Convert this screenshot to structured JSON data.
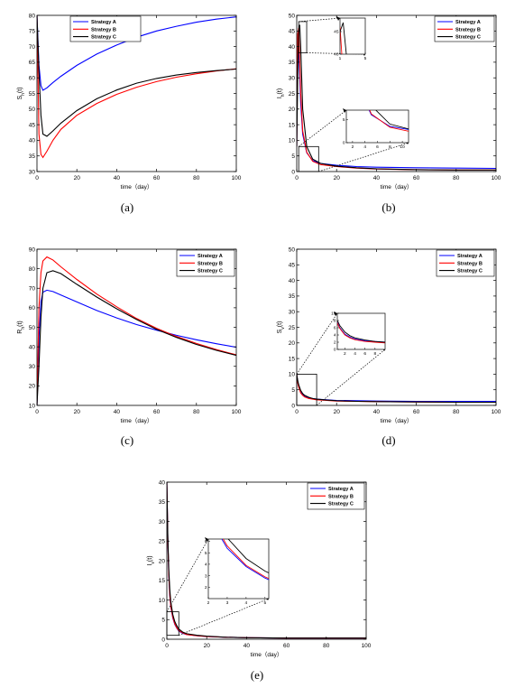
{
  "chart_data": [
    {
      "id": "a",
      "type": "line",
      "caption": "(a)",
      "xlabel": "time（day）",
      "ylabel": "S",
      "ylabel_sub": "h",
      "ylabel_tail": "(t)",
      "xlim": [
        0,
        100
      ],
      "ylim": [
        30,
        80
      ],
      "xticks": [
        0,
        20,
        40,
        60,
        80,
        100
      ],
      "yticks": [
        30,
        35,
        40,
        45,
        50,
        55,
        60,
        65,
        70,
        75,
        80
      ],
      "legend": "top-center",
      "series": [
        {
          "name": "Strategy A",
          "color": "#0000ff",
          "x": [
            0,
            1,
            2,
            3,
            5,
            8,
            12,
            20,
            30,
            40,
            50,
            60,
            70,
            80,
            90,
            100
          ],
          "y": [
            80,
            64,
            57.5,
            56,
            56.8,
            58.5,
            60.5,
            64,
            67.6,
            70.5,
            73,
            75,
            76.5,
            77.8,
            78.8,
            79.5
          ]
        },
        {
          "name": "Strategy B",
          "color": "#ff0000",
          "x": [
            0,
            1,
            2,
            3,
            5,
            8,
            12,
            20,
            30,
            40,
            50,
            60,
            70,
            80,
            90,
            100
          ],
          "y": [
            80,
            42,
            35.5,
            34.5,
            36.5,
            40,
            43.5,
            48,
            51.8,
            54.7,
            57,
            58.8,
            60.2,
            61.3,
            62.2,
            62.9
          ]
        },
        {
          "name": "Strategy C",
          "color": "#000000",
          "x": [
            0,
            1,
            2,
            3,
            5,
            8,
            12,
            20,
            30,
            40,
            50,
            60,
            70,
            80,
            90,
            100
          ],
          "y": [
            80,
            62,
            48,
            42,
            41.3,
            43,
            45.5,
            49.5,
            53.3,
            56.1,
            58.3,
            59.8,
            60.9,
            61.7,
            62.3,
            62.8
          ]
        }
      ]
    },
    {
      "id": "b",
      "type": "line",
      "caption": "(b)",
      "xlabel": "time（day）",
      "ylabel": "I",
      "ylabel_sub": "h",
      "ylabel_tail": "(t)",
      "xlim": [
        0,
        100
      ],
      "ylim": [
        0,
        50
      ],
      "xticks": [
        0,
        20,
        40,
        60,
        80,
        100
      ],
      "yticks": [
        0,
        5,
        10,
        15,
        20,
        25,
        30,
        35,
        40,
        45,
        50
      ],
      "legend": "top-right",
      "series": [
        {
          "name": "Strategy A",
          "color": "#0000ff",
          "x": [
            0,
            0.5,
            1,
            2,
            3,
            5,
            8,
            12,
            20,
            30,
            40,
            60,
            80,
            100
          ],
          "y": [
            8,
            42,
            40,
            22,
            12,
            6,
            3.5,
            2.6,
            2,
            1.6,
            1.4,
            1.2,
            1.1,
            1
          ]
        },
        {
          "name": "Strategy B",
          "color": "#ff0000",
          "x": [
            0,
            0.5,
            1,
            2,
            3,
            5,
            8,
            12,
            20,
            30,
            40,
            60,
            80,
            100
          ],
          "y": [
            8,
            44,
            46,
            25,
            13,
            6.2,
            3.3,
            2.2,
            1.6,
            1.1,
            0.8,
            0.6,
            0.5,
            0.5
          ]
        },
        {
          "name": "Strategy C",
          "color": "#000000",
          "x": [
            0,
            0.5,
            1,
            1.5,
            2,
            3,
            5,
            8,
            12,
            20,
            30,
            40,
            60,
            80,
            100
          ],
          "y": [
            8,
            30,
            45,
            47,
            40,
            20,
            8,
            4,
            2.6,
            1.7,
            1.2,
            0.9,
            0.6,
            0.5,
            0.5
          ]
        }
      ],
      "insets": [
        {
          "xlim": [
            1,
            5
          ],
          "ylim": [
            40,
            48
          ],
          "xticks": [
            1,
            5
          ],
          "yticks": [
            40,
            45
          ],
          "zoom_x": [
            1,
            5
          ],
          "zoom_y": [
            38,
            48
          ]
        },
        {
          "xlim": [
            1,
            11
          ],
          "ylim": [
            0,
            7
          ],
          "xticks": [
            2,
            4,
            6,
            8,
            10
          ],
          "yticks": [
            0,
            5
          ],
          "zoom_x": [
            1,
            11
          ],
          "zoom_y": [
            0,
            8
          ]
        }
      ]
    },
    {
      "id": "c",
      "type": "line",
      "caption": "(c)",
      "xlabel": "time（day）",
      "ylabel": "R",
      "ylabel_sub": "h",
      "ylabel_tail": "(t)",
      "xlim": [
        0,
        100
      ],
      "ylim": [
        10,
        90
      ],
      "xticks": [
        0,
        20,
        40,
        60,
        80,
        100
      ],
      "yticks": [
        10,
        20,
        30,
        40,
        50,
        60,
        70,
        80,
        90
      ],
      "legend": "top-right",
      "series": [
        {
          "name": "Strategy A",
          "color": "#0000ff",
          "x": [
            0,
            1,
            2,
            3,
            5,
            8,
            12,
            20,
            30,
            40,
            50,
            60,
            70,
            80,
            90,
            100
          ],
          "y": [
            10,
            45,
            63,
            68,
            69,
            68.3,
            66.5,
            63,
            58.6,
            54.8,
            51.4,
            48.5,
            45.9,
            43.6,
            41.6,
            39.8
          ]
        },
        {
          "name": "Strategy B",
          "color": "#ff0000",
          "x": [
            0,
            1,
            2,
            3,
            5,
            8,
            12,
            20,
            30,
            40,
            50,
            60,
            70,
            80,
            90,
            100
          ],
          "y": [
            10,
            60,
            78,
            84,
            86,
            84.5,
            81,
            74.5,
            67,
            60.5,
            54.5,
            49.5,
            45.3,
            41.7,
            38.6,
            35.9
          ]
        },
        {
          "name": "Strategy C",
          "color": "#000000",
          "x": [
            0,
            1,
            2,
            3,
            5,
            8,
            12,
            20,
            30,
            40,
            50,
            60,
            70,
            80,
            90,
            100
          ],
          "y": [
            10,
            30,
            55,
            70,
            78,
            79,
            77.5,
            72,
            65.5,
            59.5,
            54,
            49,
            44.8,
            41.2,
            38.2,
            35.6
          ]
        }
      ]
    },
    {
      "id": "d",
      "type": "line",
      "caption": "(d)",
      "xlabel": "time（day）",
      "ylabel": "S",
      "ylabel_sub": "v",
      "ylabel_tail": "(t)",
      "xlim": [
        0,
        100
      ],
      "ylim": [
        0,
        50
      ],
      "xticks": [
        0,
        20,
        40,
        60,
        80,
        100
      ],
      "yticks": [
        0,
        5,
        10,
        15,
        20,
        25,
        30,
        35,
        40,
        45,
        50
      ],
      "legend": "top-right",
      "series": [
        {
          "name": "Strategy A",
          "color": "#0000ff",
          "x": [
            0,
            0.5,
            1,
            2,
            3,
            4,
            6,
            8,
            10,
            15,
            20,
            30,
            40,
            60,
            80,
            100
          ],
          "y": [
            10,
            7.5,
            6,
            4.2,
            3.4,
            2.9,
            2.4,
            2.2,
            2,
            1.8,
            1.6,
            1.5,
            1.4,
            1.3,
            1.3,
            1.3
          ]
        },
        {
          "name": "Strategy B",
          "color": "#ff0000",
          "x": [
            0,
            0.5,
            1,
            2,
            3,
            4,
            6,
            8,
            10,
            15,
            20,
            30,
            40,
            60,
            80,
            100
          ],
          "y": [
            10,
            7.3,
            5.8,
            4,
            3.2,
            2.7,
            2.2,
            2,
            1.8,
            1.6,
            1.4,
            1.3,
            1.2,
            1.1,
            1,
            1
          ]
        },
        {
          "name": "Strategy C",
          "color": "#000000",
          "x": [
            0,
            0.5,
            1,
            2,
            3,
            4,
            6,
            8,
            10,
            15,
            20,
            30,
            40,
            60,
            80,
            100
          ],
          "y": [
            10,
            8,
            6.6,
            4.8,
            3.8,
            3.2,
            2.6,
            2.2,
            2,
            1.7,
            1.5,
            1.3,
            1.2,
            1.1,
            1,
            1
          ]
        }
      ],
      "insets": [
        {
          "xlim": [
            0.5,
            10
          ],
          "ylim": [
            0,
            10
          ],
          "xticks": [
            2,
            4,
            6,
            8
          ],
          "yticks": [
            0,
            2,
            4,
            6,
            8,
            10
          ],
          "zoom_x": [
            0,
            10
          ],
          "zoom_y": [
            0,
            10
          ]
        }
      ]
    },
    {
      "id": "e",
      "type": "line",
      "caption": "(e)",
      "xlabel": "time（day）",
      "ylabel": "I",
      "ylabel_sub": "v",
      "ylabel_tail": "(t)",
      "xlim": [
        0,
        100
      ],
      "ylim": [
        0,
        40
      ],
      "xticks": [
        0,
        20,
        40,
        60,
        80,
        100
      ],
      "yticks": [
        0,
        5,
        10,
        15,
        20,
        25,
        30,
        35,
        40
      ],
      "legend": "top-right",
      "series": [
        {
          "name": "Strategy A",
          "color": "#0000ff",
          "x": [
            0,
            0.5,
            1,
            1.5,
            2,
            3,
            4,
            5,
            6,
            8,
            10,
            15,
            20,
            30,
            40,
            60,
            80,
            100
          ],
          "y": [
            40,
            25,
            16,
            11,
            8.2,
            5.4,
            3.8,
            2.8,
            2.1,
            1.5,
            1.2,
            0.9,
            0.7,
            0.5,
            0.4,
            0.3,
            0.3,
            0.3
          ]
        },
        {
          "name": "Strategy B",
          "color": "#ff0000",
          "x": [
            0,
            0.5,
            1,
            1.5,
            2,
            3,
            4,
            5,
            6,
            8,
            10,
            15,
            20,
            30,
            40,
            60,
            80,
            100
          ],
          "y": [
            40,
            25,
            16.2,
            11.2,
            8.4,
            5.6,
            3.9,
            2.9,
            2.2,
            1.6,
            1.2,
            0.9,
            0.7,
            0.5,
            0.4,
            0.3,
            0.3,
            0.3
          ]
        },
        {
          "name": "Strategy C",
          "color": "#000000",
          "x": [
            0,
            0.5,
            1,
            1.5,
            2,
            3,
            4,
            5,
            6,
            8,
            10,
            15,
            20,
            30,
            40,
            60,
            80,
            100
          ],
          "y": [
            40,
            26,
            17.5,
            12.5,
            9.5,
            6.3,
            4.5,
            3.4,
            2.6,
            1.8,
            1.4,
            1,
            0.8,
            0.5,
            0.4,
            0.3,
            0.3,
            0.3
          ]
        }
      ],
      "insets": [
        {
          "xlim": [
            2,
            5.2
          ],
          "ylim": [
            1,
            6.2
          ],
          "xticks": [
            2,
            3,
            4,
            5
          ],
          "yticks": [
            2,
            3,
            4,
            5,
            6
          ],
          "zoom_x": [
            0,
            6
          ],
          "zoom_y": [
            1,
            7
          ]
        }
      ]
    }
  ]
}
